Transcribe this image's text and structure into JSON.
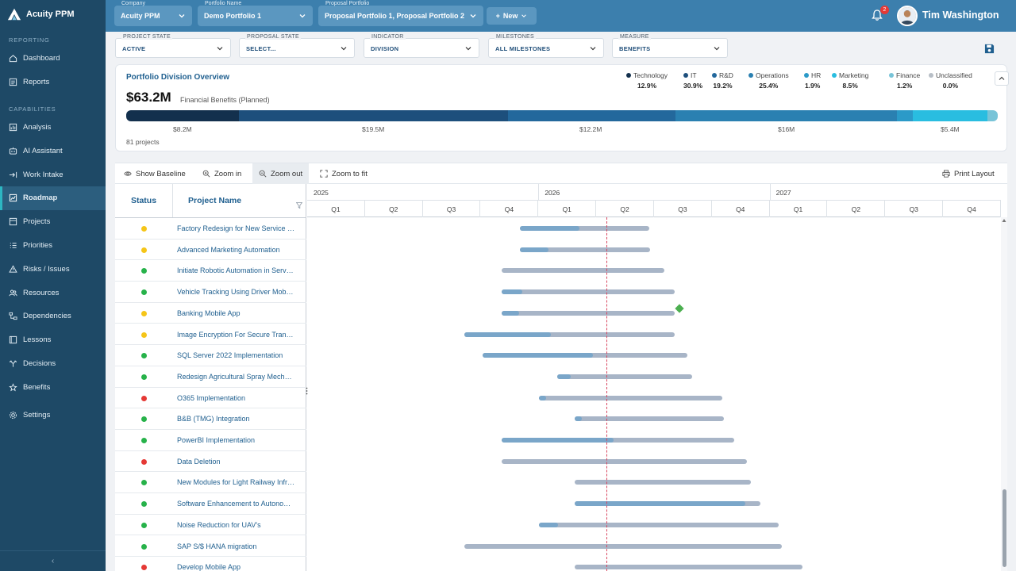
{
  "app": {
    "name": "Acuity PPM"
  },
  "sidebar": {
    "sections": [
      {
        "label": "REPORTING",
        "items": [
          {
            "label": "Dashboard",
            "icon": "home-icon"
          },
          {
            "label": "Reports",
            "icon": "reports-icon"
          }
        ]
      },
      {
        "label": "CAPABILITIES",
        "items": [
          {
            "label": "Analysis",
            "icon": "analysis-icon"
          },
          {
            "label": "AI Assistant",
            "icon": "ai-assistant-icon"
          },
          {
            "label": "Work Intake",
            "icon": "work-intake-icon"
          },
          {
            "label": "Roadmap",
            "icon": "roadmap-icon",
            "active": true
          },
          {
            "label": "Projects",
            "icon": "projects-icon"
          },
          {
            "label": "Priorities",
            "icon": "priorities-icon"
          },
          {
            "label": "Risks / Issues",
            "icon": "risks-icon"
          },
          {
            "label": "Resources",
            "icon": "resources-icon"
          },
          {
            "label": "Dependencies",
            "icon": "dependencies-icon"
          },
          {
            "label": "Lessons",
            "icon": "lessons-icon"
          },
          {
            "label": "Decisions",
            "icon": "decisions-icon"
          },
          {
            "label": "Benefits",
            "icon": "benefits-icon"
          },
          {
            "label": "Settings",
            "icon": "settings-icon"
          }
        ]
      }
    ],
    "collapse_label": "‹"
  },
  "header": {
    "company": {
      "label": "Company",
      "value": "Acuity PPM"
    },
    "portfolio": {
      "label": "Portfolio Name",
      "value": "Demo Portfolio 1"
    },
    "proposal": {
      "label": "Proposal Portfolio",
      "value": "Proposal Portfolio 1, Proposal Portfolio 2"
    },
    "new_label": "New",
    "notifications": 2,
    "user_name": "Tim Washington"
  },
  "filters": [
    {
      "label": "PROJECT STATE",
      "value": "ACTIVE"
    },
    {
      "label": "PROPOSAL STATE",
      "value": "SELECT..."
    },
    {
      "label": "INDICATOR",
      "value": "DIVISION"
    },
    {
      "label": "MILESTONES",
      "value": "ALL MILESTONES"
    },
    {
      "label": "MEASURE",
      "value": "BENEFITS"
    }
  ],
  "overview": {
    "title": "Portfolio Division Overview",
    "total": "$63.2M",
    "subtitle": "Financial Benefits (Planned)",
    "project_count": "81 projects",
    "divisions": [
      {
        "name": "Technology",
        "pct": "12.9%",
        "color": "#13304d",
        "share": 0.129
      },
      {
        "name": "IT",
        "pct": "30.9%",
        "color": "#1d4f7c",
        "share": 0.309
      },
      {
        "name": "R&D",
        "pct": "19.2%",
        "color": "#23689c",
        "share": 0.192
      },
      {
        "name": "Operations",
        "pct": "25.4%",
        "color": "#2a80b1",
        "share": 0.254
      },
      {
        "name": "HR",
        "pct": "1.9%",
        "color": "#2b9ac8",
        "share": 0.019
      },
      {
        "name": "Marketing",
        "pct": "8.5%",
        "color": "#29bde0",
        "share": 0.085
      },
      {
        "name": "Finance",
        "pct": "1.2%",
        "color": "#78c4d8",
        "share": 0.012
      },
      {
        "name": "Unclassified",
        "pct": "0.0%",
        "color": "#b7bec6",
        "share": 0.0
      }
    ],
    "amounts": [
      "$8.2M",
      "$19.5M",
      "$12.2M",
      "$16M",
      "$5.4M"
    ]
  },
  "toolbar": {
    "show_baseline": "Show Baseline",
    "zoom_in": "Zoom in",
    "zoom_out": "Zoom out",
    "zoom_fit": "Zoom to fit",
    "print_layout": "Print Layout"
  },
  "gantt": {
    "col_status": "Status",
    "col_name": "Project Name",
    "years": [
      "2025",
      "2026",
      "2027"
    ],
    "quarters": [
      "Q1",
      "Q2",
      "Q3",
      "Q4",
      "Q1",
      "Q2",
      "Q3",
      "Q4",
      "Q1",
      "Q2",
      "Q3",
      "Q4"
    ],
    "status_colors": {
      "amber": "#f5c518",
      "green": "#27b24a",
      "red": "#e53935"
    },
    "rows": [
      {
        "name": "Factory Redesign for New Service …",
        "status": "amber",
        "start": 0.3064,
        "end": 0.4931,
        "progress": 0.46,
        "milestone": null
      },
      {
        "name": "Advanced Marketing Automation",
        "status": "amber",
        "start": 0.3064,
        "end": 0.4943,
        "progress": 0.22,
        "milestone": null
      },
      {
        "name": "Initiate Robotic Automation in Serv…",
        "status": "green",
        "start": 0.28,
        "end": 0.5144,
        "progress": 0.0,
        "milestone": null
      },
      {
        "name": "Vehicle Tracking Using Driver Mob…",
        "status": "green",
        "start": 0.28,
        "end": 0.5293,
        "progress": 0.12,
        "milestone": null
      },
      {
        "name": "Banking Mobile App",
        "status": "amber",
        "start": 0.28,
        "end": 0.5293,
        "progress": 0.1,
        "milestone": 0.5368
      },
      {
        "name": "Image Encryption For Secure Tran…",
        "status": "amber",
        "start": 0.227,
        "end": 0.5293,
        "progress": 0.41,
        "milestone": null
      },
      {
        "name": "SQL Server 2022 Implementation",
        "status": "green",
        "start": 0.2529,
        "end": 0.5478,
        "progress": 0.54,
        "milestone": null
      },
      {
        "name": "Redesign Agricultural Spray Mech…",
        "status": "green",
        "start": 0.3604,
        "end": 0.5547,
        "progress": 0.1,
        "milestone": null
      },
      {
        "name": "O365 Implementation",
        "status": "red",
        "start": 0.334,
        "end": 0.5984,
        "progress": 0.04,
        "milestone": null
      },
      {
        "name": "B&B (TMG) Integration",
        "status": "green",
        "start": 0.3857,
        "end": 0.6007,
        "progress": 0.05,
        "milestone": null
      },
      {
        "name": "PowerBI Implementation",
        "status": "green",
        "start": 0.28,
        "end": 0.6156,
        "progress": 0.48,
        "milestone": null
      },
      {
        "name": "Data Deletion",
        "status": "red",
        "start": 0.28,
        "end": 0.6339,
        "progress": 0.0,
        "milestone": null
      },
      {
        "name": "New Modules for Light Railway Infr…",
        "status": "green",
        "start": 0.3857,
        "end": 0.6396,
        "progress": 0.0,
        "milestone": null
      },
      {
        "name": "Software Enhancement to Autono…",
        "status": "green",
        "start": 0.3857,
        "end": 0.6534,
        "progress": 0.92,
        "milestone": null
      },
      {
        "name": "Noise Reduction for UAV's",
        "status": "green",
        "start": 0.334,
        "end": 0.6799,
        "progress": 0.08,
        "milestone": null
      },
      {
        "name": "SAP S/$ HANA migration",
        "status": "green",
        "start": 0.227,
        "end": 0.6845,
        "progress": 0.0,
        "milestone": null
      },
      {
        "name": "Develop Mobile App",
        "status": "red",
        "start": 0.3857,
        "end": 0.7144,
        "progress": 0.0,
        "milestone": null
      }
    ]
  }
}
